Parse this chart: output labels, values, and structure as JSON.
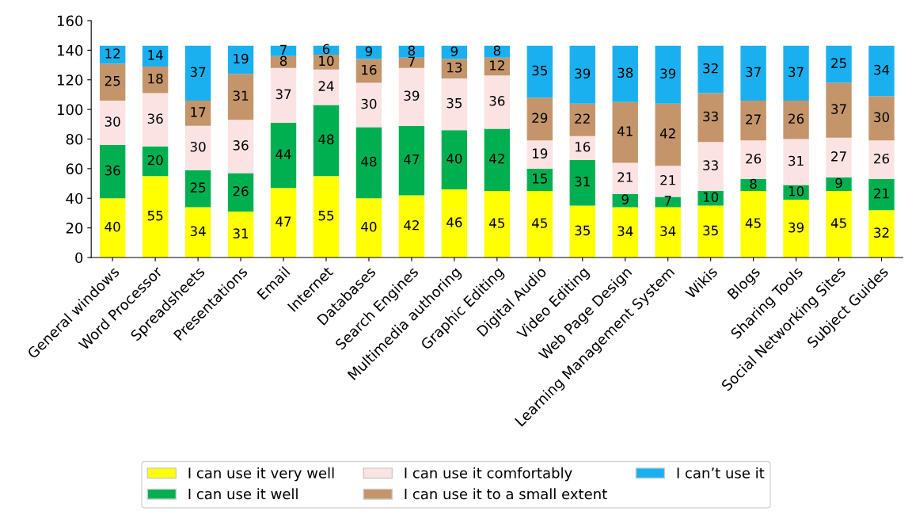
{
  "chart_data": {
    "type": "bar",
    "stacked": true,
    "data_labels": true,
    "legend": "bottom",
    "grid": false,
    "categories": [
      "General windows",
      "Word Processor",
      "Spreadsheets",
      "Presentations",
      "Email",
      "Internet",
      "Databases",
      "Search Engines",
      "Multimedia authoring",
      "Graphic Editing",
      "Digital Audio",
      "Video Editing",
      "Web Page Design",
      "Learning Management System",
      "Wikis",
      "Blogs",
      "Sharing Tools",
      "Social Networking Sites",
      "Subject Guides"
    ],
    "ylim": [
      0,
      160
    ],
    "yticks": [
      0,
      20,
      40,
      60,
      80,
      100,
      120,
      140,
      160
    ],
    "series": [
      {
        "name": "I can use it very well",
        "color": "#ffff00",
        "values": [
          40,
          55,
          34,
          31,
          47,
          55,
          40,
          42,
          46,
          45,
          45,
          35,
          34,
          34,
          35,
          45,
          39,
          45,
          32
        ]
      },
      {
        "name": "I can use it well",
        "color": "#00b050",
        "values": [
          36,
          20,
          25,
          26,
          44,
          48,
          48,
          47,
          40,
          42,
          15,
          31,
          9,
          7,
          10,
          8,
          10,
          9,
          21
        ]
      },
      {
        "name": "I can use it comfortably",
        "color": "#fbe3e3",
        "values": [
          30,
          36,
          30,
          36,
          37,
          24,
          30,
          39,
          35,
          36,
          19,
          16,
          21,
          21,
          33,
          26,
          31,
          27,
          26
        ]
      },
      {
        "name": "I can use it to a small extent",
        "color": "#c4956a",
        "values": [
          25,
          18,
          17,
          31,
          8,
          10,
          16,
          7,
          13,
          12,
          29,
          22,
          41,
          42,
          33,
          27,
          26,
          37,
          30
        ]
      },
      {
        "name": "I can’t use it",
        "color": "#1ab0ef",
        "values": [
          12,
          14,
          37,
          19,
          7,
          6,
          9,
          8,
          9,
          8,
          35,
          39,
          38,
          39,
          32,
          37,
          37,
          25,
          34
        ]
      }
    ]
  }
}
